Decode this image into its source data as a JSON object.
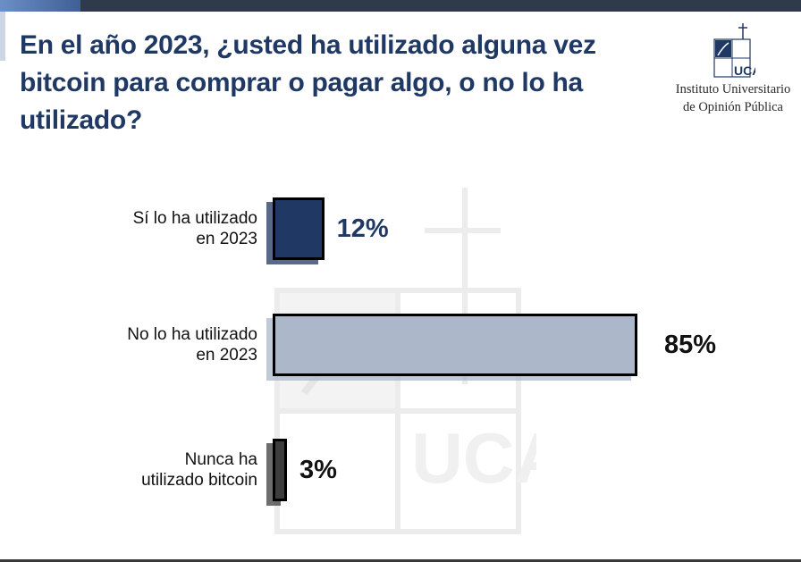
{
  "header": {
    "title": "En el año 2023, ¿usted ha utilizado alguna vez bitcoin para comprar o pagar algo, o no lo ha utilizado?"
  },
  "logo": {
    "line1": "Instituto Universitario",
    "line2": "de Opinión Pública",
    "mark_text": "UCA"
  },
  "colors": {
    "title": "#1f3864",
    "bar_1": "#1f3864",
    "bar_2": "#acb8ca",
    "bar_3": "#3d3d3d",
    "value_1": "#1f3864",
    "value_2": "#111111",
    "value_3": "#111111"
  },
  "chart_data": {
    "type": "bar",
    "orientation": "horizontal",
    "categories": [
      "Sí lo ha utilizado en 2023",
      "No lo ha utilizado en 2023",
      "Nunca ha utilizado bitcoin"
    ],
    "category_lines": [
      [
        "Sí lo ha utilizado",
        "en 2023"
      ],
      [
        "No lo ha utilizado",
        "en 2023"
      ],
      [
        "Nunca ha",
        "utilizado bitcoin"
      ]
    ],
    "values": [
      12,
      85,
      3
    ],
    "value_labels": [
      "12%",
      "85%",
      "3%"
    ],
    "unit": "%",
    "xlim": [
      0,
      100
    ],
    "title": "En el año 2023, ¿usted ha utilizado alguna vez bitcoin para comprar o pagar algo, o no lo ha utilizado?",
    "xlabel": "",
    "ylabel": "",
    "grid": false,
    "legend": "none"
  }
}
